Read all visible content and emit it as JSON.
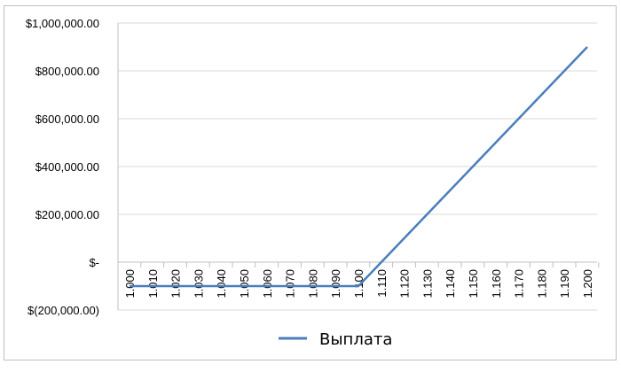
{
  "chart_data": {
    "type": "line",
    "title": "",
    "xlabel": "",
    "ylabel": "",
    "x": [
      "1.000",
      "1.010",
      "1.020",
      "1.030",
      "1.040",
      "1.050",
      "1.060",
      "1.070",
      "1.080",
      "1.090",
      "1.100",
      "1.110",
      "1.120",
      "1.130",
      "1.140",
      "1.150",
      "1.160",
      "1.170",
      "1.180",
      "1.190",
      "1.200"
    ],
    "y_ticks": [
      {
        "value": 1000000,
        "label": "$1,000,000.00"
      },
      {
        "value": 800000,
        "label": "$800,000.00"
      },
      {
        "value": 600000,
        "label": "$600,000.00"
      },
      {
        "value": 400000,
        "label": "$400,000.00"
      },
      {
        "value": 200000,
        "label": "$200,000.00"
      },
      {
        "value": 0,
        "label": "$-"
      },
      {
        "value": -200000,
        "label": "$(200,000.00)"
      }
    ],
    "ylim": [
      -200000,
      1000000
    ],
    "grid": "horizontal",
    "legend_position": "bottom",
    "series": [
      {
        "name": "Выплата",
        "color": "#4a7ebb",
        "values": [
          -100000,
          -100000,
          -100000,
          -100000,
          -100000,
          -100000,
          -100000,
          -100000,
          -100000,
          -100000,
          -100000,
          0,
          100000,
          200000,
          300000,
          400000,
          500000,
          600000,
          700000,
          800000,
          900000
        ]
      }
    ]
  }
}
